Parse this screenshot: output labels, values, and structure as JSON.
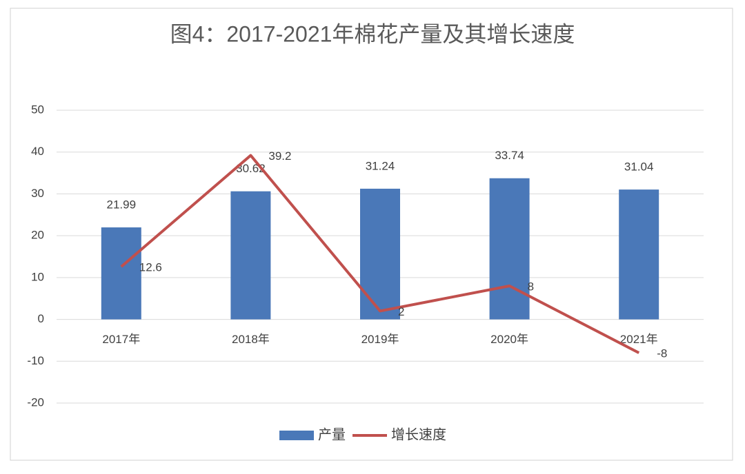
{
  "chart_data": {
    "type": "combo",
    "title": "图4：2017-2021年棉花产量及其增长速度",
    "categories": [
      "2017年",
      "2018年",
      "2019年",
      "2020年",
      "2021年"
    ],
    "series": [
      {
        "name": "产量",
        "type": "bar",
        "color": "#4a78b8",
        "values": [
          21.99,
          30.62,
          31.24,
          33.74,
          31.04
        ]
      },
      {
        "name": "增长速度",
        "type": "line",
        "color": "#c0504d",
        "values": [
          12.6,
          39.2,
          2,
          8,
          -8
        ]
      }
    ],
    "ylim": [
      -20,
      50
    ],
    "yticks": [
      -20,
      -10,
      0,
      10,
      20,
      30,
      40,
      50
    ],
    "grid": true,
    "legend": "bottom"
  }
}
